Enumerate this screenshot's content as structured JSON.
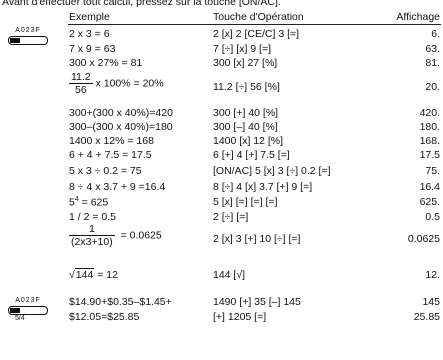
{
  "intro": "Avant d'effectuer tout calcul, pressez sur la touche [ON/AC].",
  "headers": [
    "Exemple",
    "Touche d'Opération",
    "Affichage"
  ],
  "switches": [
    {
      "label": "A023F"
    },
    {
      "label": "A023F",
      "position": "5/4"
    }
  ],
  "rows": [
    {
      "example": "2 x 3 = 6",
      "keys": "2 [x] 2 [CE/C] 3 [=]",
      "display": "6."
    },
    {
      "example": "7 x 9 = 63",
      "keys": "7 [÷] [x] 9 [=]",
      "display": "63."
    },
    {
      "example": "300 x 27% = 81",
      "keys": "300 [x] 27 [%]",
      "display": "81."
    },
    {
      "numerator": "11.2",
      "denominator": "56",
      "example": " x 100% = 20%",
      "keys": "11.2 [÷] 56 [%]",
      "display": "20."
    },
    {
      "example": "300+(300 x 40%)=420",
      "keys": "300 [+] 40 [%]",
      "display": "420."
    },
    {
      "example": "300–(300 x 40%)=180",
      "keys": "300 [–] 40 [%]",
      "display": "180."
    },
    {
      "example": "1400 x 12% = 168",
      "keys": "1400 [x] 12 [%]",
      "display": "168."
    },
    {
      "example": "6 + 4 + 7.5 = 17.5",
      "keys": "6 [+] 4 [+] 7.5 [=]",
      "display": "17.5"
    },
    {
      "example": "5 x 3 ÷ 0.2 = 75",
      "keys": "[ON/AC] 5 [x] 3 [÷] 0.2 [=]",
      "display": "75."
    },
    {
      "example": "8 ÷ 4 x 3.7 + 9 =16.4",
      "keys": "8 [÷] 4 [x] 3.7 [+] 9 [=]",
      "display": "16.4"
    },
    {
      "base": "5",
      "exponent": "4",
      "example": " = 625",
      "keys": "5 [x] [=] [=] [=]",
      "display": "625."
    },
    {
      "example": "1 / 2 = 0.5",
      "keys": "2 [÷] [=]",
      "display": "0.5"
    },
    {
      "numerator": "1",
      "denominator": "(2x3+10)",
      "example": "  = 0.0625",
      "keys": "2 [x] 3 [+] 10 [÷] [=]",
      "display": "0.0625"
    },
    {
      "radicand": "144",
      "example": " = 12",
      "keys": "144 [√]",
      "display": "12."
    },
    {
      "example": "$14.90+$0.35–$1.45+",
      "keys": "1490 [+] 35 [–] 145",
      "display": "145"
    },
    {
      "example": "$12.05=$25.85",
      "keys": "[+] 1205 [=]",
      "display": "25.85"
    }
  ]
}
